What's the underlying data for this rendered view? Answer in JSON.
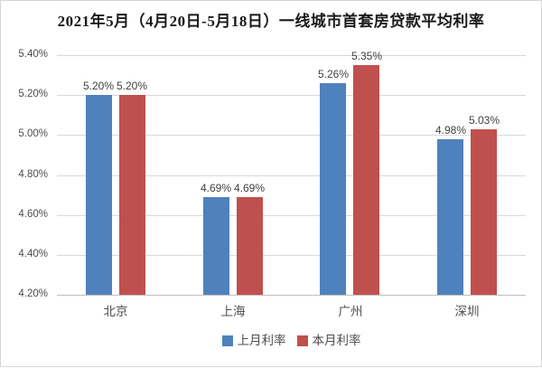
{
  "chart_data": {
    "type": "bar",
    "title": "2021年5月（4月20日-5月18日）一线城市首套房贷款平均利率",
    "categories": [
      "北京",
      "上海",
      "广州",
      "深圳"
    ],
    "series": [
      {
        "name": "上月利率",
        "color": "#4F81BD",
        "values": [
          5.2,
          4.69,
          5.26,
          4.98
        ]
      },
      {
        "name": "本月利率",
        "color": "#C0504D",
        "values": [
          5.2,
          4.69,
          5.35,
          5.03
        ]
      }
    ],
    "data_labels": [
      [
        "5.20%",
        "4.69%",
        "5.26%",
        "4.98%"
      ],
      [
        "5.20%",
        "4.69%",
        "5.35%",
        "5.03%"
      ]
    ],
    "y_axis": {
      "min": 4.2,
      "max": 5.4,
      "step": 0.2,
      "tick_labels": [
        "5.40%",
        "5.20%",
        "5.00%",
        "4.80%",
        "4.60%",
        "4.40%",
        "4.20%"
      ]
    },
    "grid": true,
    "legend_position": "bottom",
    "colors": {
      "grid": "#D9D9D9",
      "axis_line": "#BFBFBF",
      "tick_text": "#4D4D4D",
      "label_text": "#3F3F3F",
      "title_text": "#1A1A1A"
    }
  }
}
